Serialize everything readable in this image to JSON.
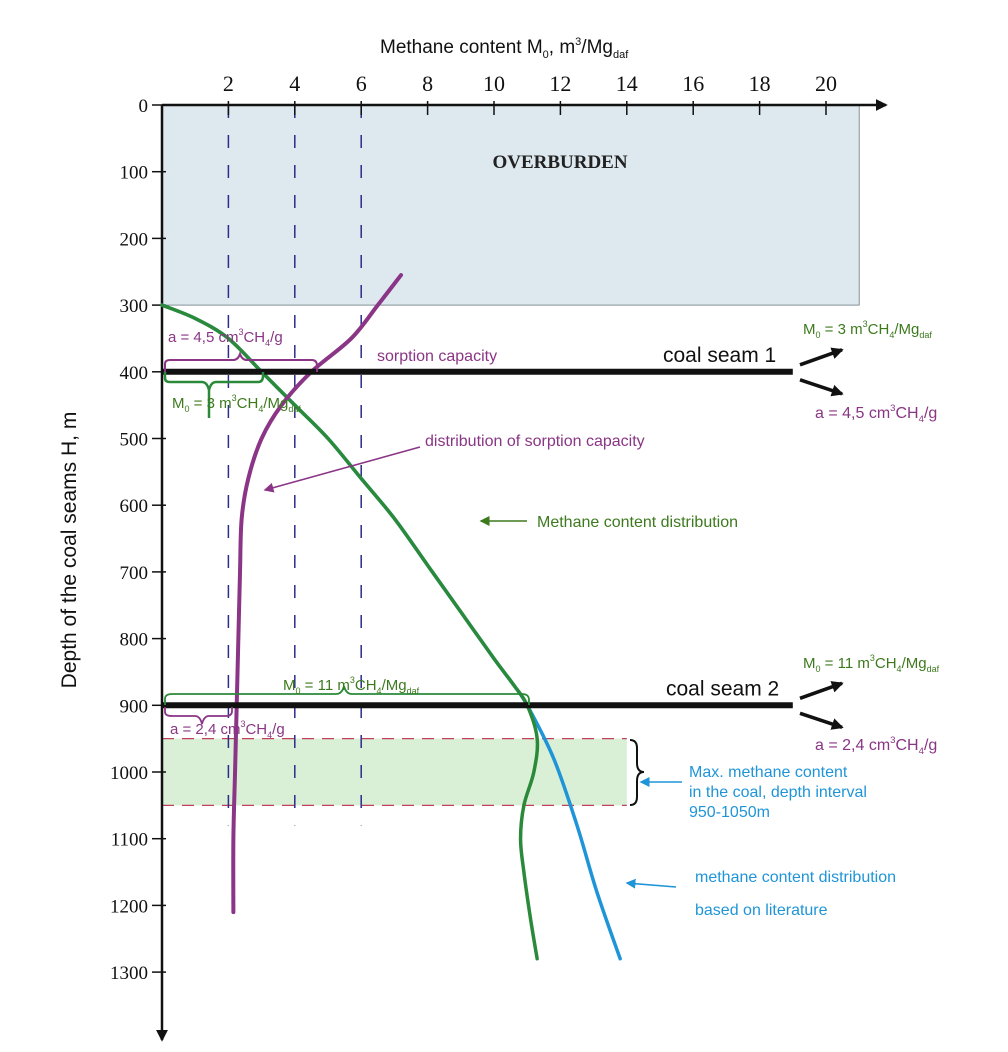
{
  "chart_data": {
    "type": "line",
    "title": "",
    "xlabel_main": "Methane content  M",
    "xlabel_sub": "0",
    "xlabel_unit": ", m",
    "xlabel_sup": "3",
    "xlabel_unit2": "/Mg",
    "xlabel_sub2": "daf",
    "ylabel": "Depth of the coal seams H, m",
    "xlim": [
      0,
      21
    ],
    "ylim": [
      0,
      1300
    ],
    "x_ticks": [
      2,
      4,
      6,
      8,
      10,
      12,
      14,
      16,
      18,
      20
    ],
    "x_tick_labels": [
      "2",
      "4",
      "6",
      "8",
      "10",
      "12",
      "14",
      "16",
      "18",
      "20"
    ],
    "y_ticks": [
      0,
      100,
      200,
      300,
      400,
      500,
      600,
      700,
      800,
      900,
      1000,
      1100,
      1200,
      1300
    ],
    "y_tick_labels": [
      "0",
      "100",
      "200",
      "300",
      "400",
      "500",
      "600",
      "700",
      "800",
      "900",
      "1000",
      "1100",
      "1200",
      "1300"
    ],
    "dashed_verticals": [
      2,
      4,
      6
    ],
    "dashed_verticals_depth": [
      0,
      1080
    ],
    "overburden": {
      "label": "OVERBURDEN",
      "depth": [
        0,
        300
      ],
      "x_max": 21,
      "color": "#dde8ef"
    },
    "max_zone": {
      "depth": [
        950,
        1050
      ],
      "x_max": 14,
      "color": "#d9f0d6"
    },
    "seams": [
      {
        "name": "coal seam 1",
        "depth": 400,
        "x_end": 19
      },
      {
        "name": "coal seam 2",
        "depth": 900,
        "x_end": 19
      }
    ],
    "series": [
      {
        "name": "sorption capacity",
        "color": "#8a3585",
        "points": [
          [
            7.2,
            255
          ],
          [
            6.5,
            300
          ],
          [
            5.7,
            350
          ],
          [
            4.5,
            400
          ],
          [
            3.6,
            450
          ],
          [
            3.0,
            500
          ],
          [
            2.6,
            560
          ],
          [
            2.4,
            620
          ],
          [
            2.35,
            700
          ],
          [
            2.3,
            800
          ],
          [
            2.25,
            900
          ],
          [
            2.2,
            1000
          ],
          [
            2.15,
            1100
          ],
          [
            2.15,
            1210
          ]
        ]
      },
      {
        "name": "Methane content distribution",
        "color": "#2a8a3a",
        "points": [
          [
            0,
            300
          ],
          [
            1.0,
            320
          ],
          [
            2.0,
            350
          ],
          [
            3.0,
            400
          ],
          [
            4.0,
            450
          ],
          [
            5.0,
            500
          ],
          [
            6.0,
            560
          ],
          [
            7.0,
            620
          ],
          [
            8.0,
            690
          ],
          [
            9.0,
            760
          ],
          [
            10.0,
            830
          ],
          [
            10.6,
            870
          ],
          [
            11.0,
            900
          ],
          [
            11.3,
            950
          ],
          [
            11.2,
            1000
          ],
          [
            10.9,
            1050
          ],
          [
            10.8,
            1100
          ],
          [
            10.9,
            1150
          ],
          [
            11.1,
            1220
          ],
          [
            11.3,
            1280
          ]
        ]
      },
      {
        "name": "methane content distribution based on literature",
        "color": "#1f95d8",
        "points": [
          [
            0,
            300
          ],
          [
            1.0,
            320
          ],
          [
            2.0,
            350
          ],
          [
            3.0,
            400
          ],
          [
            4.0,
            450
          ],
          [
            5.0,
            500
          ],
          [
            6.0,
            560
          ],
          [
            7.0,
            620
          ],
          [
            8.0,
            690
          ],
          [
            9.0,
            760
          ],
          [
            10.0,
            830
          ],
          [
            10.6,
            870
          ],
          [
            11.0,
            900
          ],
          [
            11.8,
            980
          ],
          [
            12.5,
            1080
          ],
          [
            13.1,
            1180
          ],
          [
            13.8,
            1280
          ]
        ]
      }
    ],
    "annotations": {
      "a1": {
        "prefix": "a = 4,5 cm",
        "sup": "3",
        "mid": "CH",
        "sub": "4",
        "suffix": "/g"
      },
      "m1": {
        "prefix": "M",
        "sub0": "0",
        "mid": " = 3 m",
        "sup": "3",
        "mid2": "CH",
        "sub4": "4",
        "mid3": "/Mg",
        "subdaf": "daf"
      },
      "sorption_label": "sorption capacity",
      "distribution_label": "distribution of sorption capacity",
      "methane_dist_label": "Methane content distribution",
      "m2": {
        "prefix": "M",
        "sub0": "0",
        "mid": " = 11 m",
        "sup": "3",
        "mid2": "CH",
        "sub4": "4",
        "mid3": "/Mg",
        "subdaf": "daf"
      },
      "a2": {
        "prefix": "a = 2,4 cm",
        "sup": "3",
        "mid": "CH",
        "sub": "4",
        "suffix": "/g"
      },
      "right_m1": {
        "prefix": "M",
        "sub0": "0",
        "mid": " = 3 m",
        "sup": "3",
        "mid2": "CH",
        "sub4": "4",
        "mid3": "/Mg",
        "subdaf": "daf"
      },
      "right_a1": {
        "prefix": "a = 4,5 cm",
        "sup": "3",
        "mid": "CH",
        "sub": "4",
        "suffix": "/g"
      },
      "right_m2": {
        "prefix": "M",
        "sub0": "0",
        "mid": " = 11 m",
        "sup": "3",
        "mid2": "CH",
        "sub4": "4",
        "mid3": "/Mg",
        "subdaf": "daf"
      },
      "right_a2": {
        "prefix": "a = 2,4 cm",
        "sup": "3",
        "mid": "CH",
        "sub": "4",
        "suffix": "/g"
      },
      "max_line1": "Max. methane content",
      "max_line2": "in the coal, depth interval",
      "max_line3": "950-1050m",
      "lit_line1": "methane content distribution",
      "lit_line2": "based on literature"
    },
    "colors": {
      "purple": "#8a3585",
      "green": "#2a8a3a",
      "dark_green": "#3d7a1e",
      "blue": "#1f95d8",
      "navy": "#2c2c8a",
      "black": "#111111",
      "max_zone_border": "#c0405a"
    }
  }
}
